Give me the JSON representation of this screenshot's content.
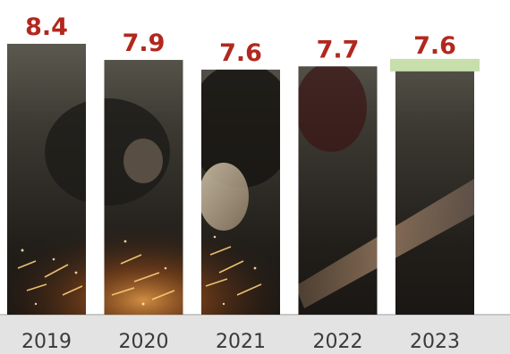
{
  "colors": {
    "value_label": "#b2281e",
    "highlight_band": "#c7dfab",
    "baseline": "#b9b9b9",
    "axis_band": "#e3e3e3"
  },
  "chart_data": {
    "type": "bar",
    "categories": [
      "2019",
      "2020",
      "2021",
      "2022",
      "2023"
    ],
    "values": [
      8.4,
      7.9,
      7.6,
      7.7,
      7.6
    ],
    "ylim": [
      0,
      8.4
    ],
    "grid": false,
    "legend": "none",
    "bar_fill": "photo-texture",
    "highlighted_category": "2023"
  }
}
